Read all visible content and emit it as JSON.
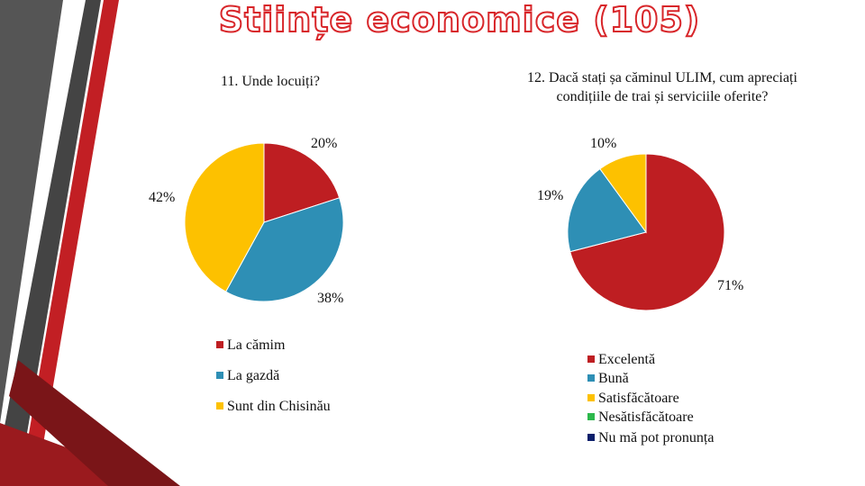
{
  "slide_title": "Stiințe economice (105)",
  "chart_data": [
    {
      "type": "pie",
      "title": "11. Unde locuiți?",
      "categories": [
        "La cămim",
        "La gazdă",
        "Sunt din Chisinău"
      ],
      "values": [
        20,
        38,
        42
      ],
      "value_labels": [
        "20%",
        "38%",
        "42%"
      ],
      "colors": [
        "#be1e22",
        "#2e8fb5",
        "#fdc100"
      ]
    },
    {
      "type": "pie",
      "title": "12. Dacă stați șa căminul ULIM, cum apreciați condițiile de trai și serviciile oferite?",
      "categories": [
        "Excelentă",
        "Bună",
        "Satisfăcătoare",
        "Nesătisfăcătoare",
        "Nu mă pot pronunța"
      ],
      "values": [
        71,
        19,
        10,
        0,
        0
      ],
      "value_labels": [
        "71%",
        "19%",
        "10%",
        null,
        null
      ],
      "colors": [
        "#be1e22",
        "#2e8fb5",
        "#fdc100",
        "#2db84c",
        "#0b1f6b"
      ]
    }
  ]
}
